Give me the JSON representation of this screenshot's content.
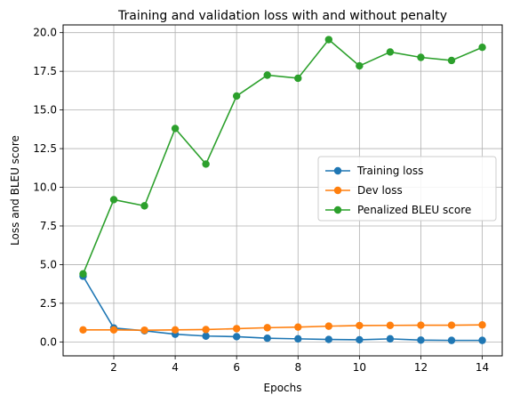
{
  "chart_data": {
    "type": "line",
    "title": "Training and validation loss with and without penalty",
    "xlabel": "Epochs",
    "ylabel": "Loss and BLEU score",
    "x": [
      1,
      2,
      3,
      4,
      5,
      6,
      7,
      8,
      9,
      10,
      11,
      12,
      13,
      14
    ],
    "xlim": [
      0.35,
      14.65
    ],
    "ylim": [
      -0.9,
      20.5
    ],
    "xticks": [
      2,
      4,
      6,
      8,
      10,
      12,
      14
    ],
    "yticks": [
      0.0,
      2.5,
      5.0,
      7.5,
      10.0,
      12.5,
      15.0,
      17.5,
      20.0
    ],
    "xtick_labels": [
      "2",
      "4",
      "6",
      "8",
      "10",
      "12",
      "14"
    ],
    "ytick_labels": [
      "0.0",
      "2.5",
      "5.0",
      "7.5",
      "10.0",
      "12.5",
      "15.0",
      "17.5",
      "20.0"
    ],
    "grid": true,
    "legend_position": "center-right",
    "series": [
      {
        "name": "Training loss",
        "color": "#1f77b4",
        "values": [
          4.25,
          0.9,
          0.72,
          0.5,
          0.38,
          0.34,
          0.24,
          0.2,
          0.16,
          0.14,
          0.2,
          0.12,
          0.1,
          0.1
        ]
      },
      {
        "name": "Dev loss",
        "color": "#ff7f0e",
        "values": [
          0.78,
          0.78,
          0.76,
          0.78,
          0.8,
          0.86,
          0.92,
          0.96,
          1.02,
          1.06,
          1.07,
          1.08,
          1.08,
          1.1
        ]
      },
      {
        "name": "Penalized BLEU score",
        "color": "#2ca02c",
        "values": [
          4.4,
          9.2,
          8.8,
          13.8,
          11.5,
          15.9,
          17.25,
          17.05,
          19.55,
          17.85,
          18.75,
          18.4,
          18.2,
          19.05
        ]
      }
    ]
  }
}
